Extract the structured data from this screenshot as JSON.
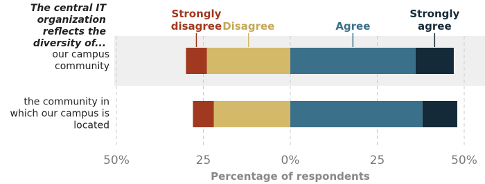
{
  "chart_data": {
    "type": "diverging-bar",
    "title": "The central IT organization reflects the diversity of...",
    "categories": [
      "our campus community",
      "the community in which our campus is located"
    ],
    "series": [
      {
        "name": "Strongly disagree",
        "color": "#a0391f",
        "values": [
          -6,
          -6
        ]
      },
      {
        "name": "Disagree",
        "color": "#d4b96a",
        "values": [
          -24,
          -22
        ]
      },
      {
        "name": "Agree",
        "color": "#3a7089",
        "values": [
          36,
          38
        ]
      },
      {
        "name": "Strongly agree",
        "color": "#142a38",
        "values": [
          11,
          10
        ]
      }
    ],
    "xlim": [
      -50,
      50
    ],
    "xticks": [
      {
        "value": -50,
        "label": "50%"
      },
      {
        "value": -25,
        "label": "25"
      },
      {
        "value": 0,
        "label": "0%"
      },
      25,
      {
        "value": 50,
        "label": "50%"
      }
    ],
    "xlabel": "Percentage of respondents",
    "grid": true
  }
}
